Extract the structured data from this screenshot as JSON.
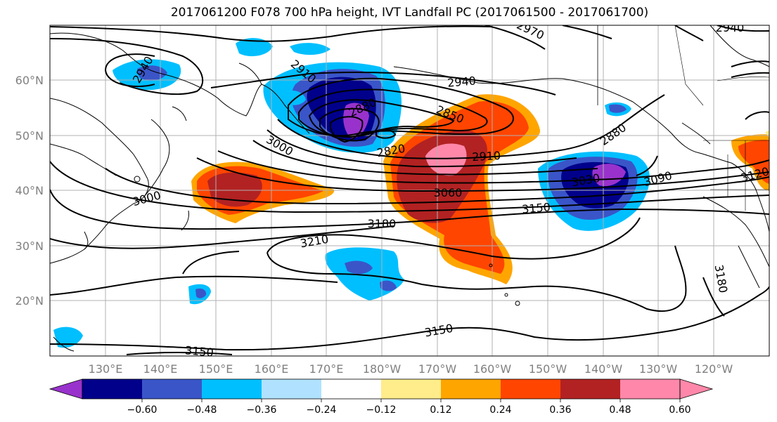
{
  "title": "2017061200 F078 700 hPa height, IVT Landfall PC (2017061500 - 2017061700)",
  "lat_labels": [
    "60°N",
    "50°N",
    "40°N",
    "30°N",
    "20°N"
  ],
  "lon_labels": [
    "130°E",
    "140°E",
    "150°E",
    "160°E",
    "170°E",
    "180°W",
    "170°W",
    "160°W",
    "150°W",
    "140°W",
    "130°W",
    "120°W"
  ],
  "contour_labels": [
    "2940",
    "2910",
    "2940",
    "2850",
    "2880",
    "2820",
    "2910",
    "3000",
    "3060",
    "3000",
    "3150",
    "3180",
    "3210",
    "3030",
    "3090",
    "2880",
    "3120",
    "3180",
    "3150",
    "3150",
    "2970",
    "2940"
  ],
  "colorbar": {
    "colors": [
      "#9932cc",
      "#00008b",
      "#3a55c8",
      "#00bfff",
      "#b0e2ff",
      "#ffffff",
      "#ffec8b",
      "#ffa500",
      "#ff4500",
      "#b22222",
      "#ff88aa"
    ],
    "ticks": [
      "−0.60",
      "−0.48",
      "−0.36",
      "−0.24",
      "−0.12",
      "0.12",
      "0.24",
      "0.36",
      "0.48",
      "0.60"
    ]
  },
  "palette": {
    "grid": "#b0b0b0",
    "coast": "#000000",
    "contour": "#000000"
  }
}
